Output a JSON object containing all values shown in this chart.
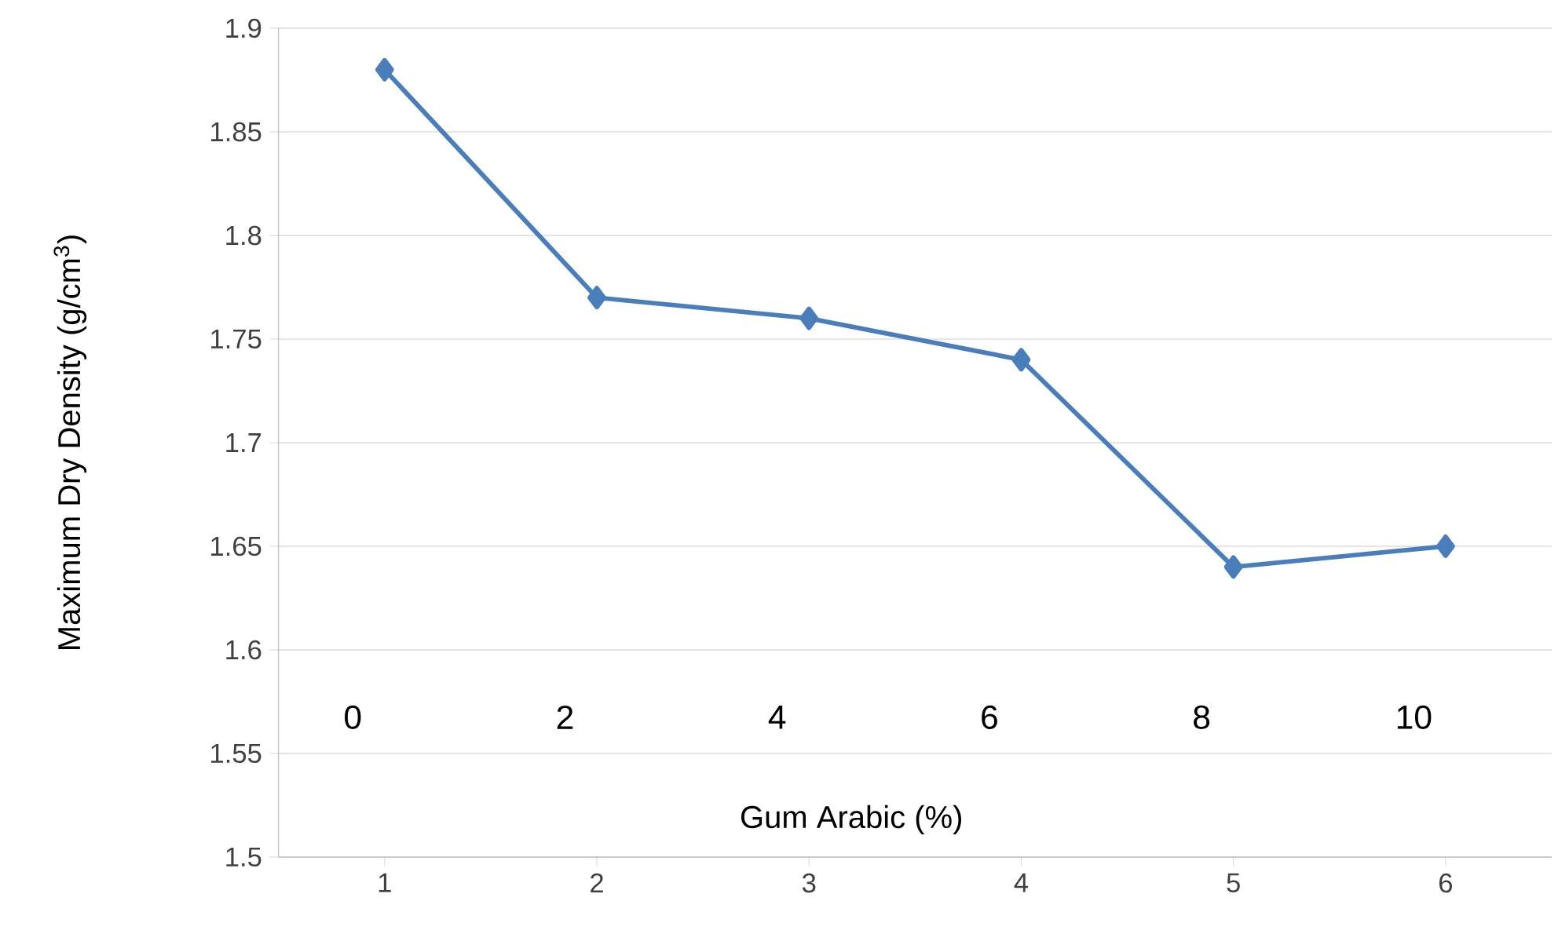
{
  "chart_data": {
    "type": "line",
    "categories": [
      "1",
      "2",
      "3",
      "4",
      "5",
      "6"
    ],
    "values": [
      1.88,
      1.77,
      1.76,
      1.74,
      1.64,
      1.65
    ],
    "color": "#4a7ebb",
    "xlabel": "Gum Arabic (%)",
    "ylabel": "Maximum Dry Density (g/cm$^{3}$)",
    "annotations": [
      "0",
      "2",
      "4",
      "6",
      "8",
      "10"
    ],
    "ylim": [
      1.5,
      1.9
    ],
    "yticks": [
      1.5,
      1.55,
      1.6,
      1.65,
      1.7,
      1.75,
      1.8,
      1.85,
      1.9
    ],
    "grid": "y",
    "marker": "diamond",
    "line_style": "solid"
  }
}
